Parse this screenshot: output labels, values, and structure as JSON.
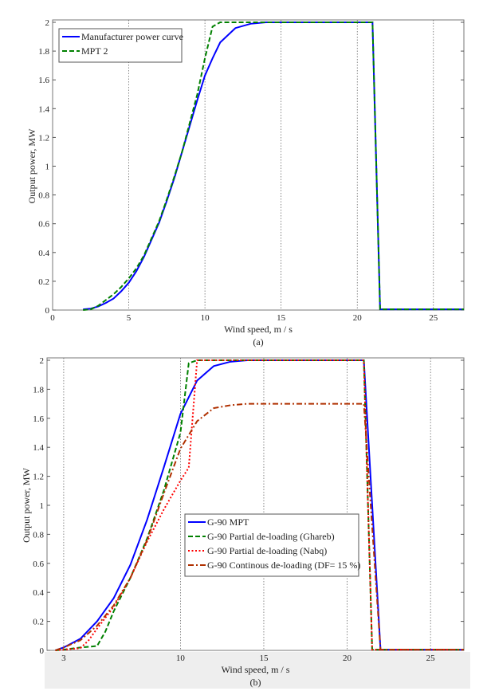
{
  "chart_data": [
    {
      "type": "line",
      "caption": "(a)",
      "xlabel": "Wind speed, m / s",
      "ylabel": "Output power, MW",
      "xlim": [
        0,
        27
      ],
      "ylim": [
        0,
        2
      ],
      "xticks": [
        0,
        5,
        10,
        15,
        20,
        25
      ],
      "yticks": [
        0,
        0.2,
        0.4,
        0.6,
        0.8,
        1,
        1.2,
        1.4,
        1.6,
        1.8,
        2
      ],
      "grid": "vertical dotted",
      "legend": "top-left",
      "series": [
        {
          "name": "Manufacturer power curve",
          "color": "#0000ff",
          "style": "solid",
          "x": [
            2,
            2.5,
            3,
            3.5,
            4,
            4.5,
            5,
            5.5,
            6,
            6.5,
            7,
            7.5,
            8,
            8.5,
            9,
            9.5,
            10,
            10.5,
            11,
            12,
            13,
            14,
            21,
            21.5,
            27
          ],
          "y": [
            0.005,
            0.01,
            0.025,
            0.05,
            0.08,
            0.13,
            0.19,
            0.27,
            0.37,
            0.49,
            0.61,
            0.76,
            0.92,
            1.1,
            1.28,
            1.46,
            1.63,
            1.75,
            1.86,
            1.96,
            1.99,
            2,
            2,
            0.005,
            0.005
          ]
        },
        {
          "name": "MPT 2",
          "color": "#008000",
          "style": "dashed",
          "x": [
            2,
            2.5,
            3,
            3.5,
            4,
            4.5,
            5,
            5.5,
            6,
            6.5,
            7,
            7.5,
            8,
            8.5,
            9,
            9.5,
            10,
            10.5,
            11,
            21,
            21.5,
            27
          ],
          "y": [
            0,
            0.005,
            0.03,
            0.07,
            0.11,
            0.16,
            0.22,
            0.29,
            0.38,
            0.5,
            0.62,
            0.77,
            0.93,
            1.1,
            1.3,
            1.5,
            1.75,
            1.97,
            2,
            2,
            0.005,
            0.005
          ]
        }
      ]
    },
    {
      "type": "line",
      "caption": "(b)",
      "xlabel": "Wind speed, m / s",
      "ylabel": "Output power, MW",
      "xlim": [
        2,
        27
      ],
      "ylim": [
        0,
        2
      ],
      "xticks": [
        3,
        10,
        15,
        20,
        25
      ],
      "yticks": [
        0,
        0.2,
        0.4,
        0.6,
        0.8,
        1,
        1.2,
        1.4,
        1.6,
        1.8,
        2
      ],
      "grid": "vertical dotted",
      "legend": "center",
      "series": [
        {
          "name": "G-90 MPT",
          "color": "#0000ff",
          "style": "solid",
          "x": [
            2.5,
            3,
            4,
            5,
            6,
            7,
            8,
            9,
            10,
            11,
            12,
            13,
            14,
            21,
            22,
            27
          ],
          "y": [
            0,
            0.02,
            0.08,
            0.2,
            0.36,
            0.59,
            0.9,
            1.26,
            1.63,
            1.86,
            1.96,
            1.99,
            2,
            2,
            0.005,
            0.005
          ]
        },
        {
          "name": "G-90 Partial de-loading (Ghareb)",
          "color": "#008000",
          "style": "dashed",
          "x": [
            2.5,
            3,
            4,
            5,
            5.5,
            6,
            7,
            8,
            9,
            10,
            10.5,
            11,
            21,
            21.5,
            27
          ],
          "y": [
            0,
            0.005,
            0.02,
            0.03,
            0.13,
            0.27,
            0.5,
            0.77,
            1.1,
            1.5,
            1.98,
            2,
            2,
            0.005,
            0.005
          ]
        },
        {
          "name": "G-90 Partial de-loading (Nabq)",
          "color": "#ff0000",
          "style": "dotted",
          "x": [
            2.5,
            3,
            4,
            4.5,
            5,
            6,
            7,
            8,
            9,
            10,
            10.5,
            11,
            21,
            21.5,
            27
          ],
          "y": [
            0,
            0.005,
            0.015,
            0.07,
            0.15,
            0.3,
            0.5,
            0.75,
            0.97,
            1.17,
            1.26,
            2,
            2,
            0.005,
            0.005
          ]
        },
        {
          "name": "G-90 Continous de-loading (DF= 15 %)",
          "color": "#b03000",
          "style": "dashdot",
          "x": [
            2.5,
            3,
            4,
            5,
            6,
            7,
            8,
            9,
            10,
            11,
            12,
            13,
            14,
            21,
            22,
            27
          ],
          "y": [
            0,
            0.02,
            0.07,
            0.17,
            0.31,
            0.5,
            0.76,
            1.08,
            1.39,
            1.58,
            1.67,
            1.69,
            1.7,
            1.7,
            0.005,
            0.005
          ]
        }
      ]
    }
  ]
}
